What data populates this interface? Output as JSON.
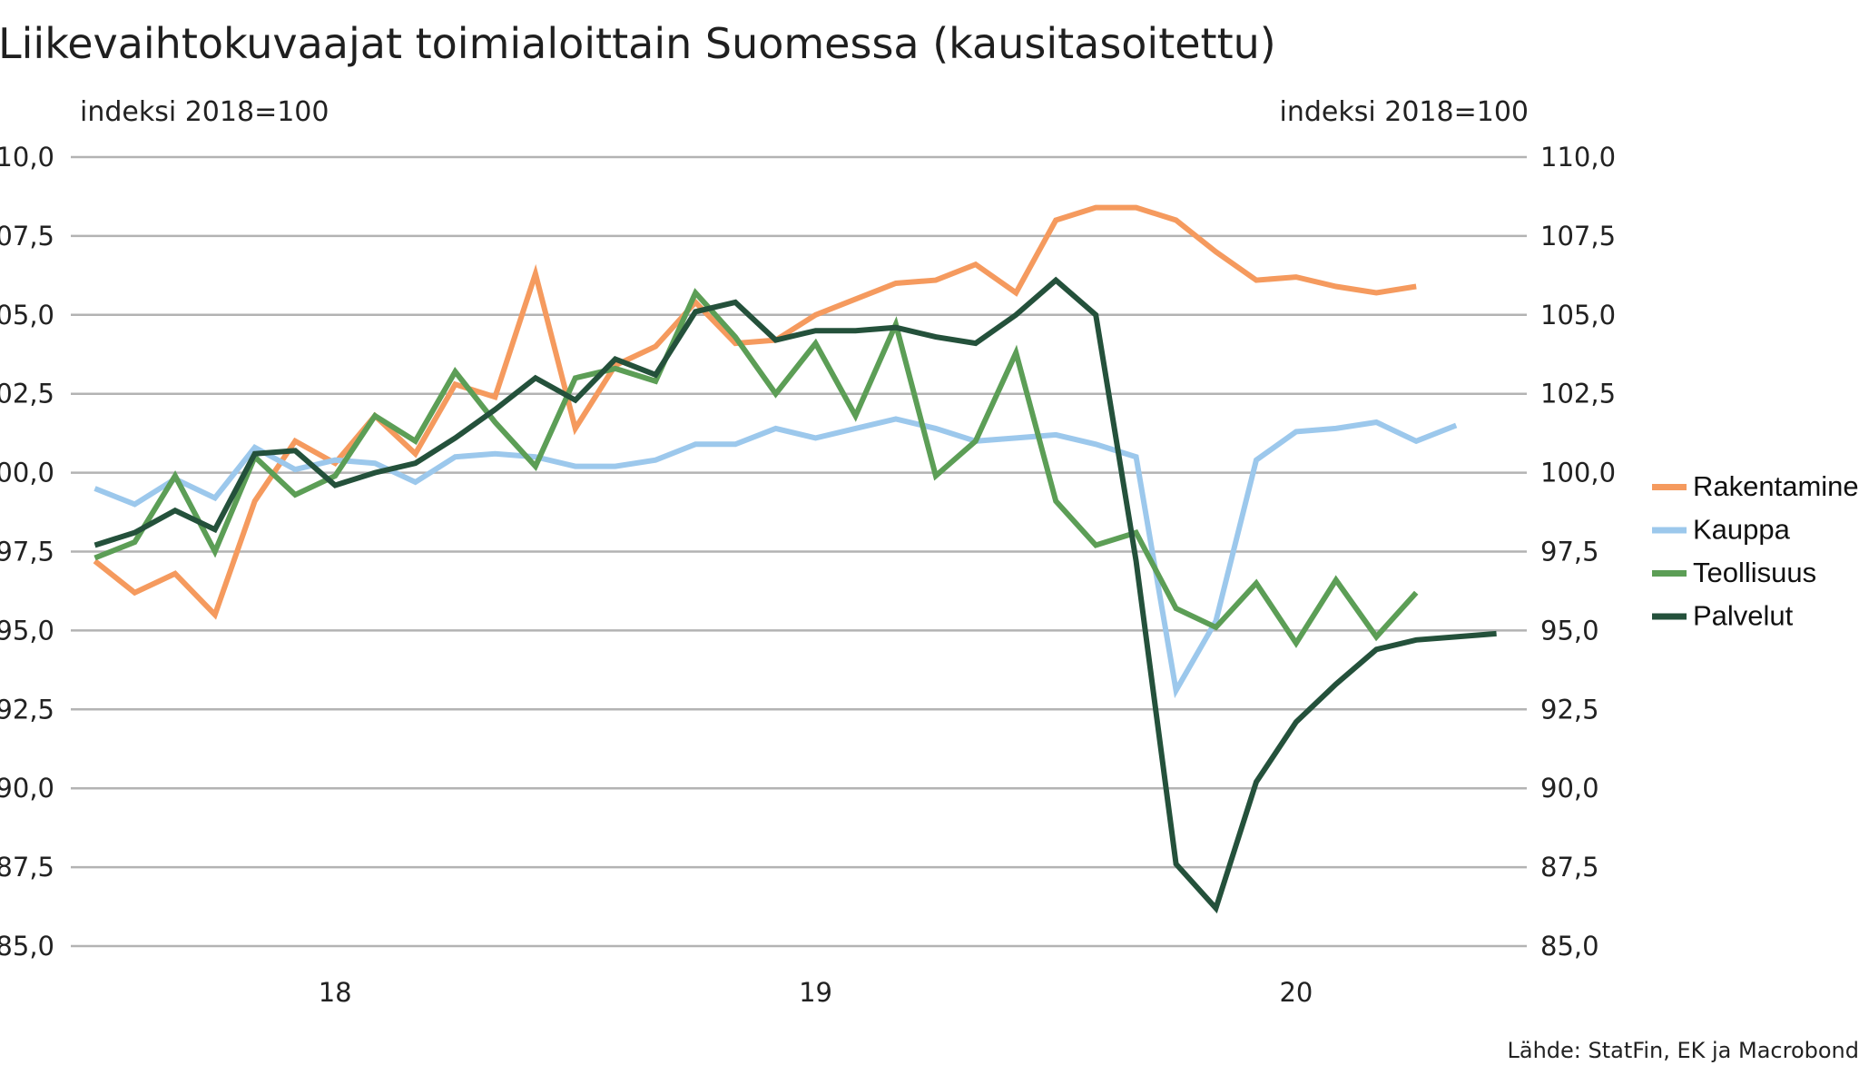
{
  "chart_data": {
    "type": "line",
    "title": "Liikevaihtokuvaajat toimialoittain Suomessa (kausitasoitettu)",
    "ylabel_left": "indeksi 2018=100",
    "ylabel_right": "indeksi 2018=100",
    "ylim": [
      85,
      110
    ],
    "yticks": [
      "110,0",
      "107,5",
      "105,0",
      "102,5",
      "100,0",
      "97,5",
      "95,0",
      "92,5",
      "90,0",
      "87,5",
      "85,0"
    ],
    "ytick_values": [
      110,
      107.5,
      105,
      102.5,
      100,
      97.5,
      95,
      92.5,
      90,
      87.5,
      85
    ],
    "x_tick_labels": [
      "18",
      "19",
      "20"
    ],
    "x_tick_positions": [
      2018.0,
      2019.0,
      2020.0
    ],
    "x": [
      2017.5,
      2017.583,
      2017.667,
      2017.75,
      2017.833,
      2017.917,
      2018.0,
      2018.083,
      2018.167,
      2018.25,
      2018.333,
      2018.417,
      2018.5,
      2018.583,
      2018.667,
      2018.75,
      2018.833,
      2018.917,
      2019.0,
      2019.083,
      2019.167,
      2019.25,
      2019.333,
      2019.417,
      2019.5,
      2019.583,
      2019.667,
      2019.75,
      2019.833,
      2019.917,
      2020.0,
      2020.083,
      2020.167,
      2020.25,
      2020.333,
      2020.417
    ],
    "xlim": [
      2017.45,
      2020.48
    ],
    "grid": true,
    "legend_position": "right",
    "series": [
      {
        "name": "Rakentaminen",
        "color": "#F59A5E",
        "values": [
          97.2,
          96.2,
          96.8,
          95.5,
          99.1,
          101.0,
          100.3,
          101.8,
          100.6,
          102.8,
          102.4,
          106.3,
          101.4,
          103.4,
          104.0,
          105.4,
          104.1,
          104.2,
          105.0,
          105.5,
          106.0,
          106.1,
          106.6,
          105.7,
          108.0,
          108.4,
          108.4,
          108.0,
          107.0,
          106.1,
          106.2,
          105.9,
          105.7,
          105.9,
          null,
          null
        ]
      },
      {
        "name": "Kauppa",
        "color": "#9CC8EC",
        "values": [
          99.5,
          99.0,
          99.8,
          99.2,
          100.8,
          100.1,
          100.4,
          100.3,
          99.7,
          100.5,
          100.6,
          100.5,
          100.2,
          100.2,
          100.4,
          100.9,
          100.9,
          101.4,
          101.1,
          101.4,
          101.7,
          101.4,
          101.0,
          101.1,
          101.2,
          100.9,
          100.5,
          93.1,
          95.3,
          100.4,
          101.3,
          101.4,
          101.6,
          101.0,
          101.5,
          null
        ]
      },
      {
        "name": "Teollisuus",
        "color": "#5C9E56",
        "values": [
          97.3,
          97.8,
          99.9,
          97.5,
          100.5,
          99.3,
          99.9,
          101.8,
          101.0,
          103.2,
          101.6,
          100.2,
          103.0,
          103.3,
          102.9,
          105.7,
          104.3,
          102.5,
          104.1,
          101.8,
          104.7,
          99.9,
          101.0,
          103.8,
          99.1,
          97.7,
          98.1,
          95.7,
          95.1,
          96.5,
          94.6,
          96.6,
          94.8,
          96.2,
          null,
          null
        ]
      },
      {
        "name": "Palvelut",
        "color": "#24513B",
        "values": [
          97.7,
          98.1,
          98.8,
          98.2,
          100.6,
          100.7,
          99.6,
          100.0,
          100.3,
          101.1,
          102.0,
          103.0,
          102.3,
          103.6,
          103.1,
          105.1,
          105.4,
          104.2,
          104.5,
          104.5,
          104.6,
          104.3,
          104.1,
          105.0,
          106.1,
          105.0,
          97.2,
          87.6,
          86.2,
          90.2,
          92.1,
          93.3,
          94.4,
          94.7,
          94.8,
          94.9
        ]
      }
    ],
    "source": "Lähde: StatFin, EK ja Macrobond"
  }
}
